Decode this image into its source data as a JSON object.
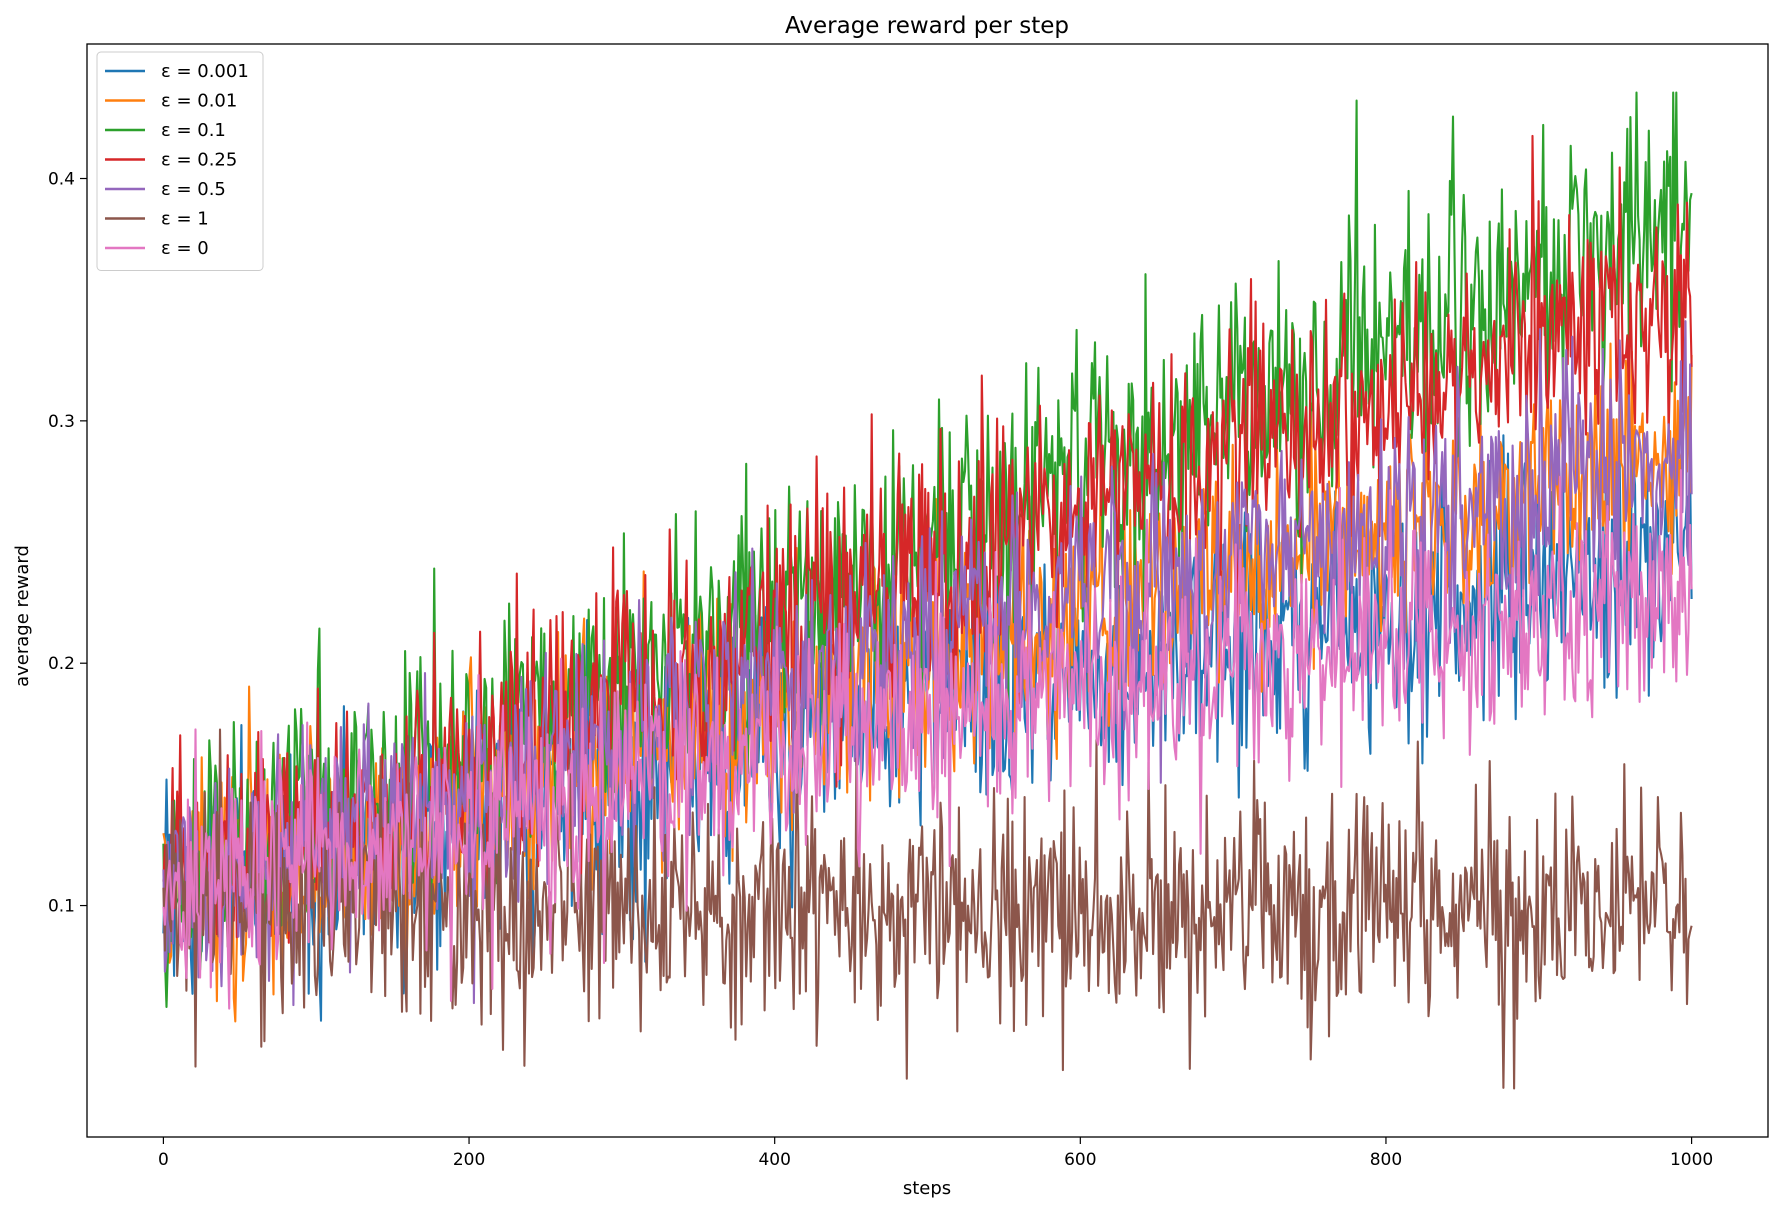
{
  "chart_data": {
    "type": "line",
    "title": "Average reward per step",
    "xlabel": "steps",
    "ylabel": "average reward",
    "xlim": [
      -50,
      1050
    ],
    "ylim": [
      0.0045,
      0.4555
    ],
    "x_ticks": [
      0,
      200,
      400,
      600,
      800,
      1000
    ],
    "x_tick_labels": [
      "0",
      "200",
      "400",
      "600",
      "800",
      "1000"
    ],
    "y_ticks": [
      0.1,
      0.2,
      0.3,
      0.4
    ],
    "y_tick_labels": [
      "0.1",
      "0.2",
      "0.3",
      "0.4"
    ],
    "grid": false,
    "legend_position": "top-left",
    "x_range": [
      0,
      1000
    ],
    "x_count": 1000,
    "series": [
      {
        "name": "ε = 0.001",
        "color": "#1f77b4",
        "trend_start": 0.105,
        "trend_mid": 0.185,
        "trend_end": 0.245,
        "noise": 0.025
      },
      {
        "name": "ε = 0.01",
        "color": "#ff7f0e",
        "trend_start": 0.105,
        "trend_mid": 0.2,
        "trend_end": 0.29,
        "noise": 0.024
      },
      {
        "name": "ε = 0.1",
        "color": "#2ca02c",
        "trend_start": 0.105,
        "trend_mid": 0.25,
        "trend_end": 0.385,
        "noise": 0.027
      },
      {
        "name": "ε = 0.25",
        "color": "#d62728",
        "trend_start": 0.105,
        "trend_mid": 0.24,
        "trend_end": 0.355,
        "noise": 0.024
      },
      {
        "name": "ε = 0.5",
        "color": "#9467bd",
        "trend_start": 0.105,
        "trend_mid": 0.215,
        "trend_end": 0.285,
        "noise": 0.024
      },
      {
        "name": "ε = 1",
        "color": "#8c564b",
        "trend_start": 0.1,
        "trend_mid": 0.1,
        "trend_end": 0.1,
        "noise": 0.024
      },
      {
        "name": "ε = 0",
        "color": "#e377c2",
        "trend_start": 0.105,
        "trend_mid": 0.18,
        "trend_end": 0.23,
        "noise": 0.023
      }
    ]
  }
}
